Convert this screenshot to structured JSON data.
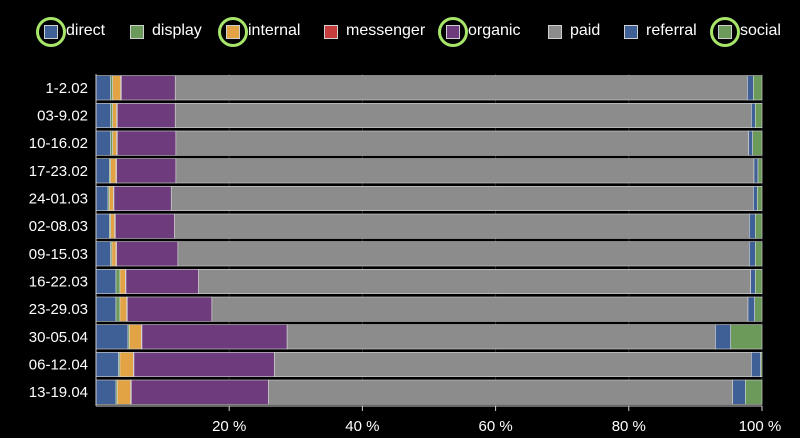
{
  "legend": [
    {
      "name": "direct",
      "color": "#3f5f97",
      "highlighted": true
    },
    {
      "name": "display",
      "color": "#6b9a5a",
      "highlighted": false
    },
    {
      "name": "internal",
      "color": "#e2a344",
      "highlighted": true
    },
    {
      "name": "messenger",
      "color": "#c53d3d",
      "highlighted": false
    },
    {
      "name": "organic",
      "color": "#6e3b7d",
      "highlighted": true
    },
    {
      "name": "paid",
      "color": "#8c8c8c",
      "highlighted": false
    },
    {
      "name": "referral",
      "color": "#3f5f97",
      "highlighted": false
    },
    {
      "name": "social",
      "color": "#6b9a5a",
      "highlighted": true
    }
  ],
  "chart_data": {
    "type": "bar",
    "orientation": "horizontal",
    "stacked": true,
    "normalized": true,
    "categories": [
      "1-2.02",
      "03-9.02",
      "10-16.02",
      "17-23.02",
      "24-01.03",
      "02-08.03",
      "09-15.03",
      "16-22.03",
      "23-29.03",
      "30-05.04",
      "06-12.04",
      "13-19.04"
    ],
    "series": [
      {
        "name": "direct",
        "color": "#3f5f97",
        "values": [
          2.2,
          2.2,
          2.2,
          2.0,
          1.8,
          2.0,
          2.2,
          3.0,
          3.0,
          4.8,
          3.4,
          3.0
        ]
      },
      {
        "name": "display",
        "color": "#6b9a5a",
        "values": [
          0.3,
          0.3,
          0.3,
          0.2,
          0.2,
          0.2,
          0.2,
          0.6,
          0.6,
          0.2,
          0.2,
          0.2
        ]
      },
      {
        "name": "internal",
        "color": "#e2a344",
        "values": [
          1.2,
          0.6,
          0.6,
          0.8,
          0.6,
          0.6,
          0.6,
          0.8,
          1.0,
          1.8,
          2.0,
          2.0
        ]
      },
      {
        "name": "messenger",
        "color": "#c53d3d",
        "values": [
          0.1,
          0.1,
          0.1,
          0.1,
          0.1,
          0.1,
          0.1,
          0.1,
          0.1,
          0.1,
          0.1,
          0.1
        ]
      },
      {
        "name": "organic",
        "color": "#6e3b7d",
        "values": [
          8.1,
          8.7,
          8.8,
          8.9,
          8.6,
          8.9,
          9.2,
          10.9,
          12.7,
          21.8,
          21.1,
          20.6
        ]
      },
      {
        "name": "paid",
        "color": "#8c8c8c",
        "values": [
          85.9,
          86.5,
          86.0,
          86.8,
          87.4,
          86.3,
          85.8,
          82.9,
          80.5,
          64.3,
          71.6,
          69.7
        ]
      },
      {
        "name": "referral",
        "color": "#3f5f97",
        "values": [
          0.9,
          0.6,
          0.6,
          0.6,
          0.6,
          0.9,
          0.9,
          0.7,
          1.0,
          2.3,
          1.4,
          1.9
        ]
      },
      {
        "name": "social",
        "color": "#6b9a5a",
        "values": [
          1.3,
          1.0,
          1.4,
          0.6,
          0.7,
          1.0,
          1.0,
          1.0,
          1.1,
          4.7,
          0.2,
          2.5
        ]
      }
    ],
    "xticks": [
      20,
      40,
      60,
      80,
      100
    ],
    "xtick_labels": [
      "20 %",
      "40 %",
      "60 %",
      "80 %",
      "100 %"
    ],
    "xlim": [
      0,
      100
    ],
    "grid": true,
    "legend_position": "top"
  }
}
